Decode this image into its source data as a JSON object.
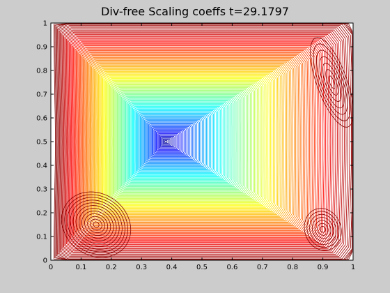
{
  "chart_data": {
    "type": "contour",
    "title": "Div-free Scaling coeffs  t=29.1797",
    "xlabel": "",
    "ylabel": "",
    "xlim": [
      0,
      1
    ],
    "ylim": [
      0,
      1
    ],
    "x_ticks": [
      0,
      0.1,
      0.2,
      0.3,
      0.4,
      0.5,
      0.6,
      0.7,
      0.8,
      0.9,
      1
    ],
    "y_ticks": [
      0,
      0.1,
      0.2,
      0.3,
      0.4,
      0.5,
      0.6,
      0.7,
      0.8,
      0.9,
      1
    ],
    "x_tick_labels": [
      "0",
      "0.1",
      "0.2",
      "0.3",
      "0.4",
      "0.5",
      "0.6",
      "0.7",
      "0.8",
      "0.9",
      "1"
    ],
    "y_tick_labels": [
      "0",
      "0.1",
      "0.2",
      "0.3",
      "0.4",
      "0.5",
      "0.6",
      "0.7",
      "0.8",
      "0.9",
      "1"
    ],
    "grid": false,
    "colormap": "jet",
    "main_vortex_center": [
      0.38,
      0.5
    ],
    "secondary_vortices": [
      {
        "center": [
          0.15,
          0.15
        ],
        "color": "#800000"
      },
      {
        "center": [
          0.9,
          0.13
        ],
        "color": "#800000"
      },
      {
        "center": [
          0.93,
          0.75
        ],
        "color": "#800000"
      }
    ],
    "colors": {
      "background": "#cccccc",
      "axes_background": "#ffffff",
      "low": "#0000ff",
      "high": "#800000"
    }
  }
}
